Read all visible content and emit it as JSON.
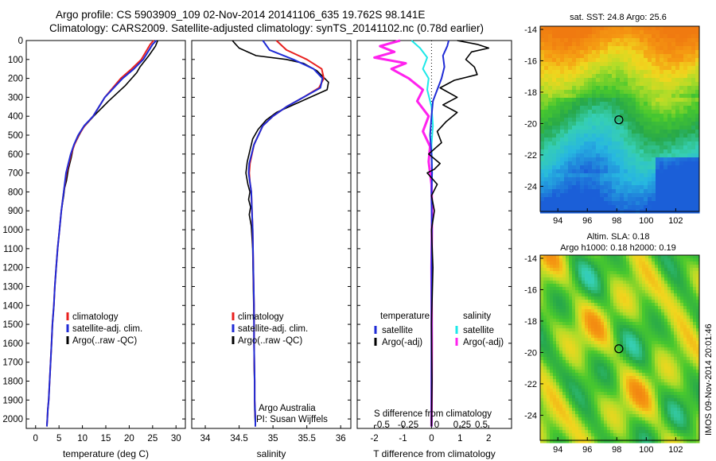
{
  "header": {
    "line1": "Argo profile: CS 5903909_109 02-Nov-2014 20141106_635 19.762S 98.141E",
    "line2": "Climatology: CARS2009. Satellite-adjusted climatology: synTS_20141102.nc (0.78d earlier)"
  },
  "colors": {
    "climatology": "#e8201e",
    "satellite": "#1f2bd6",
    "argo": "#000000",
    "salinity_satellite": "#1ee8e8",
    "salinity_argo": "#ff22ee"
  },
  "depth_axis": {
    "range": [
      0,
      2050
    ],
    "ticks": [
      0,
      100,
      200,
      300,
      400,
      500,
      600,
      700,
      800,
      900,
      1000,
      1100,
      1200,
      1300,
      1400,
      1500,
      1600,
      1700,
      1800,
      1900,
      2000
    ],
    "reversed": true
  },
  "panels": {
    "temperature": {
      "xlabel": "temperature (deg C)",
      "xticks": [
        0,
        5,
        10,
        15,
        20,
        25,
        30
      ],
      "legend": [
        "climatology",
        "satellite-adj. clim.",
        "Argo(..raw -QC)"
      ]
    },
    "salinity": {
      "xlabel": "salinity",
      "xticks": [
        34,
        34.5,
        35,
        35.5,
        36
      ],
      "xtick_labels": [
        "34",
        "34.5",
        "35",
        "35.5",
        "36"
      ],
      "legend": [
        "climatology",
        "satellite-adj. clim.",
        "Argo(..raw -QC)"
      ],
      "credit_line1": "Argo Australia",
      "credit_line2": "PI: Susan Wijffels"
    },
    "difference": {
      "xlabel": "T difference from climatology",
      "top_axis_label": "S difference from climatology",
      "xticks": [
        -2,
        -1,
        0,
        1,
        2
      ],
      "xtick_labels": [
        "-2",
        "-1",
        "0",
        "1",
        "2"
      ],
      "s_ticks": [
        "-0.5",
        "-0.25",
        "0",
        "0.25",
        "0.5"
      ],
      "legend_temperature_title": "temperature",
      "legend_salinity_title": "salinity",
      "legend_temperature": [
        "satellite",
        "Argo(-adj)"
      ],
      "legend_salinity": [
        "satellite",
        "Argo(-adj)"
      ]
    }
  },
  "maps": {
    "sst": {
      "title": "sat. SST: 24.8  Argo: 25.6",
      "xticks": [
        94,
        96,
        98,
        100,
        102
      ],
      "yticks": [
        -14,
        -16,
        -18,
        -20,
        -22,
        -24
      ],
      "lon_range": [
        92.8,
        103.6
      ],
      "lat_range": [
        -25.6,
        -13.8
      ],
      "argo_point": [
        98.141,
        -19.762
      ]
    },
    "sla": {
      "title1": "Altim. SLA: 0.18",
      "title2": "Argo h1000: 0.18  h2000: 0.19",
      "xticks": [
        94,
        96,
        98,
        100,
        102
      ],
      "yticks": [
        -14,
        -16,
        -18,
        -20,
        -22,
        -24
      ],
      "lon_range": [
        92.8,
        103.6
      ],
      "lat_range": [
        -25.6,
        -13.8
      ],
      "argo_point": [
        98.141,
        -19.762
      ]
    }
  },
  "footer_label": "IMOS 09-Nov-2014 20:01:46",
  "chart_data": [
    {
      "type": "line",
      "title": "",
      "xlabel": "temperature (deg C)",
      "ylabel": "",
      "xlim": [
        -2,
        32
      ],
      "ylim": [
        2050,
        0
      ],
      "series": [
        {
          "name": "climatology",
          "x": [
            25.2,
            24.5,
            22.6,
            20.5,
            18.2,
            14.8,
            12.3,
            10.5,
            9.2,
            8.3,
            7.6,
            7.1,
            6.6,
            6.0,
            5.5,
            5.1,
            4.7,
            4.4,
            4.1,
            3.9,
            3.6,
            3.4,
            3.2,
            3.0,
            2.8,
            2.6,
            2.5,
            2.4
          ],
          "y": [
            0,
            20,
            100,
            150,
            200,
            300,
            400,
            450,
            500,
            550,
            600,
            650,
            700,
            800,
            900,
            1000,
            1100,
            1200,
            1300,
            1400,
            1500,
            1600,
            1700,
            1800,
            1900,
            1950,
            2000,
            2040
          ]
        },
        {
          "name": "satellite-adj. clim.",
          "x": [
            25.8,
            25.0,
            23.0,
            21.0,
            18.6,
            14.8,
            12.3,
            10.4,
            9.1,
            8.2,
            7.5,
            7.0,
            6.5,
            6.0,
            5.5,
            5.1,
            4.7,
            4.4,
            4.1,
            3.9,
            3.6,
            3.4,
            3.2,
            3.0,
            2.8,
            2.6,
            2.5,
            2.4
          ],
          "y": [
            0,
            20,
            100,
            150,
            200,
            300,
            400,
            450,
            500,
            550,
            600,
            650,
            700,
            800,
            900,
            1000,
            1100,
            1200,
            1300,
            1400,
            1500,
            1600,
            1700,
            1800,
            1900,
            1950,
            2000,
            2040
          ]
        },
        {
          "name": "Argo(..raw -QC)",
          "x": [
            26.1,
            25.6,
            24.2,
            22.3,
            21.6,
            19.1,
            15.6,
            12.4,
            10.2,
            9.3,
            8.1,
            7.6,
            7.0,
            6.6,
            6.2,
            6.0,
            5.5,
            5.1,
            4.7,
            4.4,
            4.1,
            3.9,
            3.6,
            3.4,
            3.2,
            3.0,
            2.8,
            2.6,
            2.5,
            2.4
          ],
          "y": [
            0,
            30,
            80,
            140,
            170,
            240,
            320,
            400,
            460,
            500,
            560,
            620,
            680,
            740,
            780,
            820,
            900,
            1000,
            1100,
            1200,
            1300,
            1400,
            1500,
            1600,
            1700,
            1800,
            1900,
            1950,
            2000,
            2040
          ]
        }
      ]
    },
    {
      "type": "line",
      "title": "",
      "xlabel": "salinity",
      "ylabel": "",
      "xlim": [
        33.8,
        36.15
      ],
      "ylim": [
        2050,
        0
      ],
      "series": [
        {
          "name": "climatology",
          "x": [
            35.05,
            35.2,
            35.5,
            35.72,
            35.75,
            35.68,
            35.45,
            35.2,
            35.0,
            34.85,
            34.72,
            34.66,
            34.65,
            34.66,
            34.68,
            34.69,
            34.7,
            34.71,
            34.72,
            34.72,
            34.73,
            34.73,
            34.74,
            34.74
          ],
          "y": [
            0,
            50,
            100,
            150,
            200,
            250,
            300,
            350,
            400,
            450,
            550,
            650,
            700,
            750,
            800,
            900,
            1000,
            1200,
            1400,
            1600,
            1800,
            1900,
            2000,
            2040
          ]
        },
        {
          "name": "satellite-adj. clim.",
          "x": [
            34.85,
            34.95,
            35.3,
            35.6,
            35.73,
            35.7,
            35.45,
            35.2,
            35.0,
            34.85,
            34.72,
            34.65,
            34.64,
            34.66,
            34.68,
            34.69,
            34.7,
            34.71,
            34.72,
            34.72,
            34.73,
            34.73,
            34.74,
            34.74
          ],
          "y": [
            0,
            50,
            100,
            150,
            200,
            250,
            300,
            350,
            400,
            450,
            550,
            650,
            700,
            750,
            800,
            900,
            1000,
            1200,
            1400,
            1600,
            1800,
            1900,
            2000,
            2040
          ]
        },
        {
          "name": "Argo(..raw -QC)",
          "x": [
            34.4,
            34.45,
            34.5,
            34.75,
            35.2,
            35.45,
            35.65,
            35.82,
            35.8,
            35.55,
            35.3,
            35.05,
            34.9,
            34.78,
            34.7,
            34.66,
            34.62,
            34.6,
            34.61,
            34.63,
            34.66,
            34.64,
            34.67,
            34.65,
            34.68,
            34.7,
            34.71,
            34.72,
            34.72,
            34.73,
            34.73,
            34.74
          ],
          "y": [
            0,
            20,
            40,
            80,
            100,
            120,
            160,
            220,
            260,
            300,
            340,
            380,
            420,
            470,
            520,
            580,
            640,
            700,
            720,
            760,
            800,
            840,
            880,
            920,
            980,
            1100,
            1300,
            1500,
            1700,
            1850,
            1950,
            2040
          ]
        }
      ]
    },
    {
      "type": "line",
      "title": "",
      "xlabel": "T difference from climatology",
      "ylabel": "",
      "xlim": [
        -2.6,
        2.8
      ],
      "ylim": [
        2050,
        0
      ],
      "series": [
        {
          "name": "temperature satellite",
          "x": [
            0.6,
            0.55,
            0.4,
            0.45,
            0.35,
            0.2,
            0.05,
            0.0,
            -0.05,
            0.0,
            0.02,
            0.0,
            0.01,
            0.0,
            0.0,
            0.0,
            0.0,
            0.0
          ],
          "y": [
            0,
            30,
            80,
            140,
            200,
            260,
            320,
            400,
            500,
            600,
            700,
            800,
            1000,
            1200,
            1400,
            1600,
            1800,
            2040
          ]
        },
        {
          "name": "temperature Argo(-adj)",
          "x": [
            0.9,
            1.6,
            2.0,
            1.4,
            1.2,
            1.5,
            1.6,
            0.8,
            0.3,
            0.9,
            0.4,
            0.9,
            0.5,
            0.2,
            0.35,
            -0.1,
            0.3,
            0.1,
            -0.15,
            0.2,
            0.0,
            0.1,
            0.0,
            0.05,
            0.0,
            0.02,
            0.0
          ],
          "y": [
            0,
            20,
            40,
            60,
            100,
            140,
            180,
            210,
            250,
            300,
            340,
            380,
            430,
            480,
            540,
            600,
            650,
            680,
            700,
            760,
            820,
            900,
            1000,
            1200,
            1500,
            1800,
            2040
          ]
        },
        {
          "name": "salinity satellite",
          "x": [
            -0.7,
            -0.4,
            -0.15,
            -0.3,
            -0.1,
            -0.15,
            0.0,
            0.05,
            0.0,
            0.02,
            0.0,
            0.01,
            0.0,
            0.0,
            0.0,
            0.0
          ],
          "y": [
            0,
            40,
            90,
            150,
            200,
            260,
            350,
            450,
            550,
            700,
            850,
            1000,
            1200,
            1500,
            1800,
            2040
          ]
        },
        {
          "name": "salinity Argo(-adj)",
          "x": [
            -1.1,
            -1.8,
            -1.3,
            -2.0,
            -0.9,
            -1.4,
            -0.8,
            -0.3,
            -0.5,
            -0.1,
            -0.3,
            -0.05,
            -0.1,
            0.0,
            0.02,
            0.0,
            0.01,
            0.0
          ],
          "y": [
            0,
            30,
            60,
            90,
            120,
            150,
            200,
            260,
            320,
            400,
            480,
            560,
            640,
            760,
            900,
            1200,
            1600,
            2040
          ]
        }
      ]
    }
  ]
}
